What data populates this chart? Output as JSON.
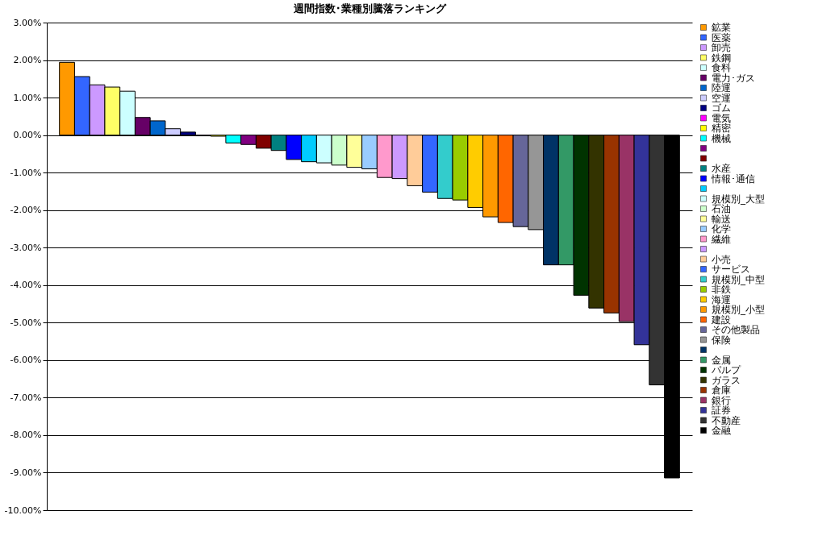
{
  "chart_data": {
    "type": "bar",
    "title": "週間指数･業種別騰落ランキング",
    "categories": [
      null
    ],
    "series": [
      {
        "name": "鉱業",
        "color": "#ff9900",
        "values": [
          1.94
        ]
      },
      {
        "name": "医薬",
        "color": "#3366ff",
        "values": [
          1.56
        ]
      },
      {
        "name": "卸売",
        "color": "#cc99ff",
        "values": [
          1.34
        ]
      },
      {
        "name": "鉄鋼",
        "color": "#ffff66",
        "values": [
          1.28
        ]
      },
      {
        "name": "食料",
        "color": "#ccffff",
        "values": [
          1.17
        ]
      },
      {
        "name": "電力･ガス",
        "color": "#660066",
        "values": [
          0.47
        ]
      },
      {
        "name": "陸運",
        "color": "#0066cc",
        "values": [
          0.38
        ]
      },
      {
        "name": "空運",
        "color": "#ccccff",
        "values": [
          0.17
        ]
      },
      {
        "name": "ゴム",
        "color": "#000080",
        "values": [
          0.08
        ]
      },
      {
        "name": "電気",
        "color": "#ff00ff",
        "values": [
          -0.02
        ]
      },
      {
        "name": "精密",
        "color": "#ffff00",
        "values": [
          -0.03
        ]
      },
      {
        "name": "機械",
        "color": "#00ffff",
        "values": [
          -0.21
        ]
      },
      {
        "name": null,
        "color": "#800080",
        "values": [
          -0.25
        ]
      },
      {
        "name": null,
        "color": "#800000",
        "values": [
          -0.35
        ]
      },
      {
        "name": "水産",
        "color": "#008080",
        "values": [
          -0.41
        ]
      },
      {
        "name": "情報･通信",
        "color": "#0000ff",
        "values": [
          -0.65
        ]
      },
      {
        "name": null,
        "color": "#00ccff",
        "values": [
          -0.71
        ]
      },
      {
        "name": "規模別_大型",
        "color": "#ccffff",
        "values": [
          -0.74
        ]
      },
      {
        "name": "石油",
        "color": "#ccffcc",
        "values": [
          -0.8
        ]
      },
      {
        "name": "輸送",
        "color": "#ffff99",
        "values": [
          -0.86
        ]
      },
      {
        "name": "化学",
        "color": "#99ccff",
        "values": [
          -0.9
        ]
      },
      {
        "name": "繊維",
        "color": "#ff99cc",
        "values": [
          -1.13
        ]
      },
      {
        "name": null,
        "color": "#cc99ff",
        "values": [
          -1.16
        ]
      },
      {
        "name": "小売",
        "color": "#ffcc99",
        "values": [
          -1.35
        ]
      },
      {
        "name": "サービス",
        "color": "#3366ff",
        "values": [
          -1.52
        ]
      },
      {
        "name": "規模別_中型",
        "color": "#33cccc",
        "values": [
          -1.69
        ]
      },
      {
        "name": "非鉄",
        "color": "#99cc00",
        "values": [
          -1.73
        ]
      },
      {
        "name": "海運",
        "color": "#ffcc00",
        "values": [
          -1.93
        ]
      },
      {
        "name": "規模別_小型",
        "color": "#ff9900",
        "values": [
          -2.18
        ]
      },
      {
        "name": "建設",
        "color": "#ff6600",
        "values": [
          -2.33
        ]
      },
      {
        "name": "その他製品",
        "color": "#666699",
        "values": [
          -2.44
        ]
      },
      {
        "name": "保険",
        "color": "#969696",
        "values": [
          -2.52
        ]
      },
      {
        "name": null,
        "color": "#003366",
        "values": [
          -3.46
        ]
      },
      {
        "name": "金属",
        "color": "#339966",
        "values": [
          -3.46
        ]
      },
      {
        "name": "パルプ",
        "color": "#003300",
        "values": [
          -4.27
        ]
      },
      {
        "name": "ガラス",
        "color": "#333300",
        "values": [
          -4.61
        ]
      },
      {
        "name": "倉庫",
        "color": "#993300",
        "values": [
          -4.74
        ]
      },
      {
        "name": "銀行",
        "color": "#993366",
        "values": [
          -4.97
        ]
      },
      {
        "name": "証券",
        "color": "#333399",
        "values": [
          -5.59
        ]
      },
      {
        "name": "不動産",
        "color": "#333333",
        "values": [
          -6.66
        ]
      },
      {
        "name": "金融",
        "color": "#000000",
        "values": [
          -9.14
        ]
      }
    ],
    "ylim": [
      -10,
      3
    ],
    "yticks": [
      {
        "value": 3,
        "label": "3.00%"
      },
      {
        "value": 2,
        "label": "2.00%"
      },
      {
        "value": 1,
        "label": "1.00%"
      },
      {
        "value": 0,
        "label": "0.00%"
      },
      {
        "value": -1,
        "label": "-1.00%"
      },
      {
        "value": -2,
        "label": "-2.00%"
      },
      {
        "value": -3,
        "label": "-3.00%"
      },
      {
        "value": -4,
        "label": "-4.00%"
      },
      {
        "value": -5,
        "label": "-5.00%"
      },
      {
        "value": -6,
        "label": "-6.00%"
      },
      {
        "value": -7,
        "label": "-7.00%"
      },
      {
        "value": -8,
        "label": "-8.00%"
      },
      {
        "value": -9,
        "label": "-9.00%"
      },
      {
        "value": -10,
        "label": "-10.00%"
      }
    ],
    "grid": "y",
    "legend": "right",
    "tick_labels": "y"
  }
}
